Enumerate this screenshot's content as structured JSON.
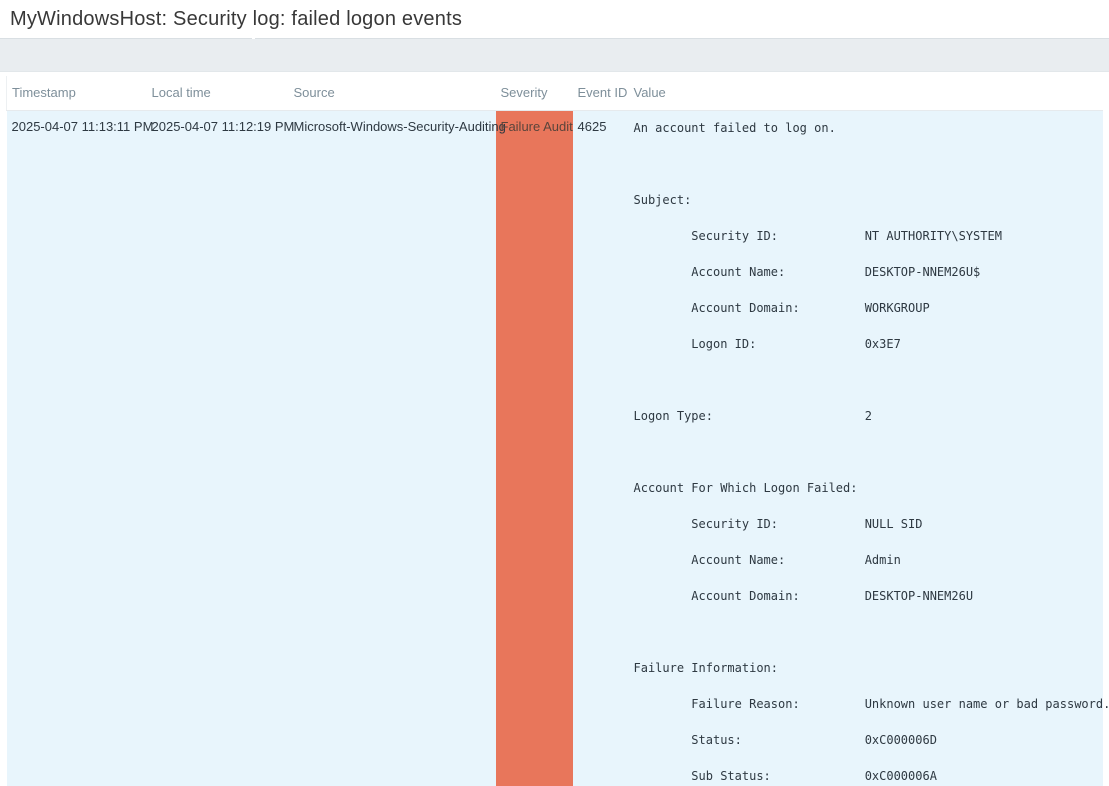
{
  "page": {
    "title": "MyWindowsHost: Security log: failed logon events"
  },
  "colors": {
    "severity_failure_audit_bg": "#e8765b",
    "severity_failure_audit_text": "#5a443b",
    "row_bg": "#e8f5fc",
    "toolbar_bg": "#e9edf0",
    "header_text": "#7e8f9a",
    "body_text": "#2e3942"
  },
  "table": {
    "columns": [
      {
        "key": "timestamp",
        "label": "Timestamp"
      },
      {
        "key": "local_time",
        "label": "Local time"
      },
      {
        "key": "source",
        "label": "Source"
      },
      {
        "key": "severity",
        "label": "Severity"
      },
      {
        "key": "event_id",
        "label": "Event ID"
      },
      {
        "key": "value",
        "label": "Value"
      }
    ],
    "rows": [
      {
        "timestamp": "2025-04-07 11:13:11 PM",
        "local_time": "2025-04-07 11:12:19 PM",
        "source": "Microsoft-Windows-Security-Auditing",
        "severity": "Failure Audit",
        "event_id": "4625",
        "value_lines": [
          "An account failed to log on.",
          "",
          "Subject:",
          "\tSecurity ID:\t\tNT AUTHORITY\\SYSTEM",
          "\tAccount Name:\t\tDESKTOP-NNEM26U$",
          "\tAccount Domain:\t\tWORKGROUP",
          "\tLogon ID:\t\t0x3E7",
          "",
          "Logon Type:\t\t\t2",
          "",
          "Account For Which Logon Failed:",
          "\tSecurity ID:\t\tNULL SID",
          "\tAccount Name:\t\tAdmin",
          "\tAccount Domain:\t\tDESKTOP-NNEM26U",
          "",
          "Failure Information:",
          "\tFailure Reason:\t\tUnknown user name or bad password.",
          "\tStatus:\t\t\t0xC000006D",
          "\tSub Status:\t\t0xC000006A"
        ]
      }
    ]
  }
}
